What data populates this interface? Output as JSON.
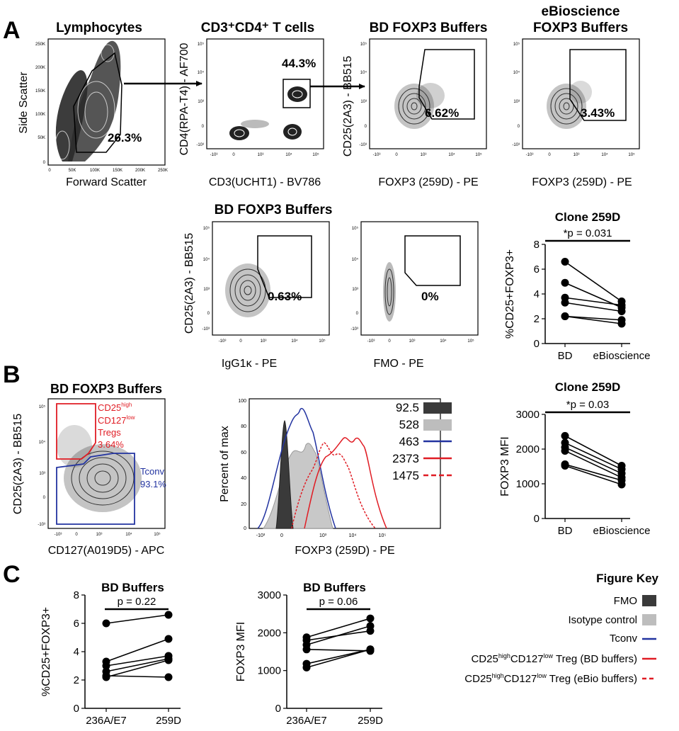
{
  "panels": {
    "A": "A",
    "B": "B",
    "C": "C"
  },
  "flow_plots": [
    {
      "id": "lymph",
      "title": "Lymphocytes",
      "xlabel": "Forward Scatter",
      "ylabel": "Side Scatter",
      "gate_value": "26.3%",
      "yticks": [
        "250K",
        "200K",
        "150K",
        "100K",
        "50K",
        "0"
      ],
      "xticks": [
        "0",
        "50K",
        "100K",
        "150K",
        "200K",
        "250K"
      ]
    },
    {
      "id": "cd3cd4",
      "title": "CD3⁺CD4⁺ T cells",
      "xlabel": "CD3(UCHT1) - BV786",
      "ylabel": "CD4(RPA-T4) - AF700",
      "gate_value": "44.3%"
    },
    {
      "id": "bd1",
      "title": "BD FOXP3 Buffers",
      "xlabel": "FOXP3 (259D) - PE",
      "ylabel": "CD25(2A3) - BB515",
      "gate_value": "6.62%"
    },
    {
      "id": "ebio",
      "title_line1": "eBioscience",
      "title_line2": "FOXP3 Buffers",
      "xlabel": "FOXP3 (259D) - PE",
      "gate_value": "3.43%"
    },
    {
      "id": "iso",
      "title": "BD FOXP3 Buffers",
      "xlabel": "IgG1κ - PE",
      "ylabel": "CD25(2A3) - BB515",
      "gate_value": "0.63%"
    },
    {
      "id": "fmo",
      "xlabel": "FMO - PE",
      "gate_value": "0%"
    },
    {
      "id": "cd127",
      "title": "BD FOXP3 Buffers",
      "xlabel": "CD127(A019D5) - APC",
      "ylabel": "CD25(2A3) - BB515",
      "treg_line1": "CD25",
      "treg_sup1": "high",
      "treg_line2": "CD127",
      "treg_sup2": "low",
      "treg_line3": "Tregs",
      "treg_value": "3.64%",
      "tconv_label": "Tconv",
      "tconv_value": "93.1%"
    }
  ],
  "log_ticks": {
    "e5": "10⁵",
    "e4": "10⁴",
    "e3": "10³",
    "zero": "0",
    "neg3": "-10³"
  },
  "chart_data": [
    {
      "id": "clone259D_pct",
      "type": "line",
      "title": "Clone 259D",
      "ylabel": "%CD25+FOXP3+",
      "categories": [
        "BD",
        "eBioscience"
      ],
      "ylim": [
        0,
        8
      ],
      "yticks": [
        "0",
        "2",
        "4",
        "6",
        "8"
      ],
      "pvalue": "*p = 0.031",
      "pairs": [
        [
          6.6,
          3.4
        ],
        [
          4.9,
          2.9
        ],
        [
          3.7,
          3.1
        ],
        [
          3.3,
          2.6
        ],
        [
          2.2,
          1.9
        ],
        [
          2.2,
          1.6
        ]
      ]
    },
    {
      "id": "clone259D_mfi",
      "type": "line",
      "title": "Clone 259D",
      "ylabel": "FOXP3 MFI",
      "categories": [
        "BD",
        "eBioscience"
      ],
      "ylim": [
        0,
        3000
      ],
      "yticks": [
        "0",
        "1000",
        "2000",
        "3000"
      ],
      "pvalue": "*p = 0.03",
      "pairs": [
        [
          2380,
          1520
        ],
        [
          2180,
          1420
        ],
        [
          2050,
          1300
        ],
        [
          1950,
          1180
        ],
        [
          1560,
          1100
        ],
        [
          1520,
          980
        ]
      ]
    },
    {
      "id": "hist",
      "type": "area",
      "xlabel": "FOXP3 (259D) - PE",
      "ylabel": "Percent of max",
      "ylim": [
        0,
        100
      ],
      "yticks": [
        "0",
        "20",
        "40",
        "60",
        "80",
        "100"
      ],
      "xticks": [
        "-10³",
        "0",
        "10³",
        "10⁴",
        "10⁵"
      ],
      "legend": [
        {
          "value": "92.5",
          "name": "FMO",
          "color": "#3a3a3a"
        },
        {
          "value": "528",
          "name": "Isotype control",
          "color": "#bdbdbd"
        },
        {
          "value": "463",
          "name": "Tconv",
          "color": "#2233a0"
        },
        {
          "value": "2373",
          "name": "Treg BD",
          "color": "#e01c24"
        },
        {
          "value": "1475",
          "name": "Treg eBio",
          "color": "#e01c24"
        }
      ]
    },
    {
      "id": "bd_pct",
      "type": "line",
      "title": "BD Buffers",
      "ylabel": "%CD25+FOXP3+",
      "categories": [
        "236A/E7",
        "259D"
      ],
      "ylim": [
        0,
        8
      ],
      "yticks": [
        "0",
        "2",
        "4",
        "6",
        "8"
      ],
      "pvalue": "p = 0.22",
      "pairs": [
        [
          6.0,
          6.6
        ],
        [
          3.3,
          4.9
        ],
        [
          3.0,
          3.7
        ],
        [
          2.6,
          3.5
        ],
        [
          2.3,
          2.2
        ],
        [
          2.2,
          3.4
        ]
      ]
    },
    {
      "id": "bd_mfi",
      "type": "line",
      "title": "BD Buffers",
      "ylabel": "FOXP3 MFI",
      "categories": [
        "236A/E7",
        "259D"
      ],
      "ylim": [
        0,
        3000
      ],
      "yticks": [
        "0",
        "1000",
        "2000",
        "3000"
      ],
      "pvalue": "p = 0.06",
      "pairs": [
        [
          1880,
          2380
        ],
        [
          1800,
          2050
        ],
        [
          1680,
          2180
        ],
        [
          1560,
          1520
        ],
        [
          1180,
          1560
        ],
        [
          1080,
          1560
        ]
      ]
    }
  ],
  "figure_key": {
    "title": "Figure Key",
    "items": [
      {
        "label": "FMO"
      },
      {
        "label": "Isotype control"
      },
      {
        "label": "Tconv"
      },
      {
        "pre": "CD25",
        "sup1": "high",
        "mid": "CD127",
        "sup2": "low",
        "post": " Treg  (BD buffers)"
      },
      {
        "pre": "CD25",
        "sup1": "high",
        "mid": "CD127",
        "sup2": "low",
        "post": " Treg (eBio buffers)"
      }
    ]
  }
}
